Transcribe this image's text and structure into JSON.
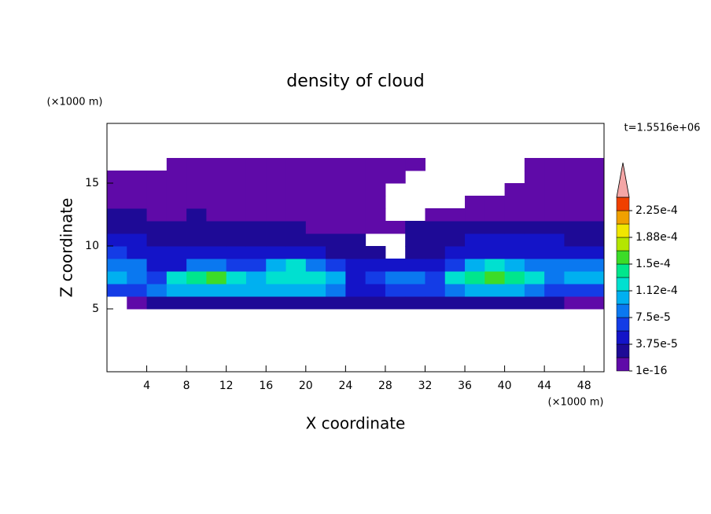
{
  "chart_data": {
    "type": "contour",
    "title": "density of cloud",
    "subtitle": "t=1.5516e+06",
    "x_label": "X coordinate",
    "y_label": "Z coordinate",
    "x_unit": "(×1000 m)",
    "y_unit": "(×1000 m)",
    "xlim": [
      0,
      50
    ],
    "ylim": [
      0,
      19.75
    ],
    "xticks": [
      4,
      8,
      12,
      16,
      20,
      24,
      28,
      32,
      36,
      40,
      44,
      48
    ],
    "yticks": [
      5,
      10,
      15
    ],
    "x": [
      1,
      3,
      5,
      7,
      9,
      11,
      13,
      15,
      17,
      19,
      21,
      23,
      25,
      27,
      29,
      31,
      33,
      35,
      37,
      39,
      41,
      43,
      45,
      47,
      49
    ],
    "z": [
      5.5,
      6.5,
      7.5,
      8.5,
      9.5,
      10.5,
      11.5,
      12.5,
      13.5,
      14.5,
      15.5,
      16.5
    ],
    "values": [
      [
        null,
        1e-05,
        2e-05,
        3e-05,
        3e-05,
        3e-05,
        3e-05,
        3e-05,
        3e-05,
        3e-05,
        3e-05,
        2e-05,
        2e-05,
        3e-05,
        3e-05,
        2e-05,
        3e-05,
        3e-05,
        3e-05,
        3e-05,
        3e-05,
        3e-05,
        2e-05,
        1e-05,
        1e-05
      ],
      [
        7e-05,
        6e-05,
        8e-05,
        0.0001,
        0.000105,
        0.0001,
        0.0001,
        0.0001,
        0.000105,
        0.000105,
        0.0001,
        9e-05,
        4e-05,
        5e-05,
        7e-05,
        7e-05,
        6e-05,
        9e-05,
        0.0001,
        0.000105,
        0.0001,
        9e-05,
        6e-05,
        6e-05,
        7e-05
      ],
      [
        0.00011,
        9e-05,
        7e-05,
        0.00013,
        0.00014,
        0.00015,
        0.00013,
        0.0001,
        0.000125,
        0.00013,
        0.000125,
        0.0001,
        5e-05,
        6e-05,
        8e-05,
        8e-05,
        6e-05,
        0.00012,
        0.00014,
        0.000155,
        0.000145,
        0.00012,
        8e-05,
        0.000105,
        0.00011
      ],
      [
        9e-05,
        8e-05,
        5e-05,
        4e-05,
        8e-05,
        9e-05,
        6e-05,
        6e-05,
        0.0001,
        0.000115,
        8e-05,
        6e-05,
        4e-05,
        4e-05,
        5e-05,
        5e-05,
        4e-05,
        7e-05,
        0.0001,
        0.00012,
        0.0001,
        8e-05,
        8e-05,
        8e-05,
        9e-05
      ],
      [
        6e-05,
        5e-05,
        4e-05,
        4e-05,
        4e-05,
        4e-05,
        4e-05,
        4e-05,
        4e-05,
        4e-05,
        4e-05,
        3e-05,
        3e-05,
        3e-05,
        null,
        3e-05,
        3e-05,
        4e-05,
        4e-05,
        4e-05,
        4e-05,
        5e-05,
        5e-05,
        5e-05,
        5e-05
      ],
      [
        4e-05,
        4e-05,
        3e-05,
        3e-05,
        3e-05,
        3e-05,
        3e-05,
        3e-05,
        3e-05,
        2e-05,
        2e-05,
        2e-05,
        2e-05,
        null,
        null,
        2e-05,
        3e-05,
        3e-05,
        4.5e-05,
        4.5e-05,
        4.5e-05,
        4e-05,
        4e-05,
        3e-05,
        3e-05
      ],
      [
        3e-05,
        2e-05,
        2e-05,
        2e-05,
        2e-05,
        2e-05,
        2e-05,
        2e-05,
        2e-05,
        2e-05,
        1e-05,
        1e-05,
        1e-05,
        1e-05,
        1e-05,
        2e-05,
        2e-05,
        2e-05,
        3e-05,
        3e-05,
        3e-05,
        3e-05,
        3e-05,
        2e-05,
        2e-05
      ],
      [
        2e-05,
        2e-05,
        1e-05,
        1e-05,
        2e-05,
        1e-05,
        1e-05,
        1e-05,
        1e-05,
        1e-05,
        1e-05,
        1e-05,
        1e-05,
        1e-05,
        null,
        null,
        1e-05,
        1e-05,
        1e-05,
        1e-05,
        1e-05,
        1e-05,
        1e-05,
        1e-05,
        1e-05
      ],
      [
        1e-05,
        1e-05,
        1e-05,
        1e-05,
        1e-05,
        1e-05,
        1e-05,
        1e-05,
        1e-05,
        1e-05,
        1e-05,
        1e-05,
        1e-05,
        1e-05,
        null,
        null,
        null,
        null,
        1e-05,
        1e-05,
        1e-05,
        1e-05,
        1e-05,
        1e-05,
        1e-05
      ],
      [
        1e-05,
        1e-05,
        1e-05,
        1e-05,
        1e-05,
        1e-05,
        1e-05,
        1e-05,
        1e-05,
        1e-05,
        1e-05,
        1e-05,
        1e-05,
        1e-05,
        null,
        null,
        null,
        null,
        null,
        null,
        1e-05,
        1e-05,
        1e-05,
        1e-05,
        1e-05
      ],
      [
        1e-05,
        1e-05,
        1e-05,
        1e-05,
        1e-05,
        1e-05,
        1e-05,
        1e-05,
        1e-05,
        1e-05,
        1e-05,
        1e-05,
        1e-05,
        1e-05,
        1e-05,
        null,
        null,
        null,
        null,
        null,
        null,
        1e-05,
        1e-05,
        1e-05,
        1e-05
      ],
      [
        null,
        null,
        null,
        1e-05,
        1e-05,
        1e-05,
        1e-05,
        1e-05,
        1e-05,
        1e-05,
        1e-05,
        1e-05,
        1e-05,
        1e-05,
        1e-05,
        1e-05,
        null,
        null,
        null,
        null,
        null,
        1e-05,
        1e-05,
        1e-05,
        1e-05
      ]
    ],
    "levels": [
      1e-16,
      1.875e-05,
      3.75e-05,
      5.625e-05,
      7.5e-05,
      9.375e-05,
      0.0001125,
      0.00013125,
      0.00015,
      0.00016875,
      0.0001875,
      0.00020625,
      0.000225
    ],
    "clim": [
      1e-16,
      0.00024375
    ],
    "colors": [
      "#5f0aa8",
      "#1e0a96",
      "#1414c8",
      "#143ce6",
      "#0a78f0",
      "#00b0f0",
      "#00e0d0",
      "#00e68c",
      "#3cdc28",
      "#b4e600",
      "#f0e600",
      "#f0a000",
      "#f04000"
    ],
    "extend_color": "#f4a6a6",
    "cticks": [
      {
        "value": 1e-16,
        "label": "1e-16"
      },
      {
        "value": 3.75e-05,
        "label": "3.75e-5"
      },
      {
        "value": 7.5e-05,
        "label": "7.5e-5"
      },
      {
        "value": 0.0001125,
        "label": "1.12e-4"
      },
      {
        "value": 0.00015,
        "label": "1.5e-4"
      },
      {
        "value": 0.0001875,
        "label": "1.88e-4"
      },
      {
        "value": 0.000225,
        "label": "2.25e-4"
      }
    ]
  }
}
